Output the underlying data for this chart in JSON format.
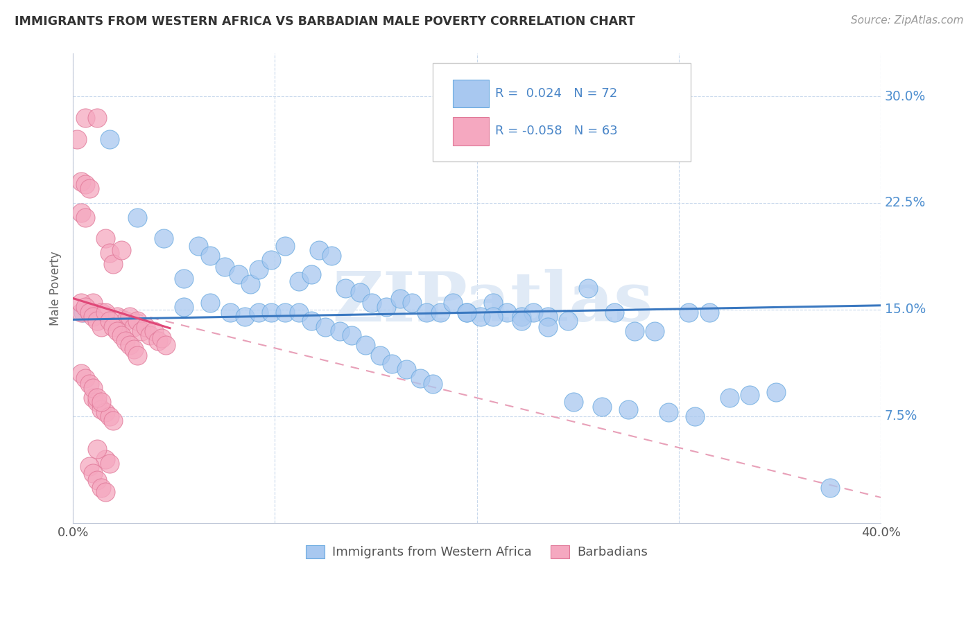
{
  "title": "IMMIGRANTS FROM WESTERN AFRICA VS BARBADIAN MALE POVERTY CORRELATION CHART",
  "source": "Source: ZipAtlas.com",
  "ylabel": "Male Poverty",
  "xlim": [
    0.0,
    0.4
  ],
  "ylim": [
    0.0,
    0.33
  ],
  "blue_color": "#a8c8f0",
  "blue_edge_color": "#6aaae0",
  "pink_color": "#f5a8c0",
  "pink_edge_color": "#e07898",
  "blue_line_color": "#3a78c0",
  "pink_line_color": "#e04878",
  "pink_dashed_color": "#e8a0b8",
  "watermark": "ZIPatlas",
  "blue_x": [
    0.005,
    0.018,
    0.032,
    0.045,
    0.055,
    0.062,
    0.068,
    0.075,
    0.082,
    0.088,
    0.092,
    0.098,
    0.105,
    0.112,
    0.118,
    0.122,
    0.128,
    0.135,
    0.142,
    0.148,
    0.155,
    0.162,
    0.168,
    0.175,
    0.182,
    0.188,
    0.195,
    0.202,
    0.208,
    0.215,
    0.222,
    0.228,
    0.235,
    0.245,
    0.255,
    0.268,
    0.278,
    0.288,
    0.305,
    0.315,
    0.325,
    0.335,
    0.348,
    0.055,
    0.068,
    0.078,
    0.085,
    0.092,
    0.098,
    0.105,
    0.112,
    0.118,
    0.125,
    0.132,
    0.138,
    0.145,
    0.152,
    0.158,
    0.165,
    0.172,
    0.178,
    0.195,
    0.208,
    0.222,
    0.235,
    0.248,
    0.262,
    0.275,
    0.295,
    0.308,
    0.375
  ],
  "blue_y": [
    0.148,
    0.27,
    0.215,
    0.2,
    0.172,
    0.195,
    0.188,
    0.18,
    0.175,
    0.168,
    0.178,
    0.185,
    0.195,
    0.17,
    0.175,
    0.192,
    0.188,
    0.165,
    0.162,
    0.155,
    0.152,
    0.158,
    0.155,
    0.148,
    0.148,
    0.155,
    0.148,
    0.145,
    0.155,
    0.148,
    0.145,
    0.148,
    0.145,
    0.142,
    0.165,
    0.148,
    0.135,
    0.135,
    0.148,
    0.148,
    0.088,
    0.09,
    0.092,
    0.152,
    0.155,
    0.148,
    0.145,
    0.148,
    0.148,
    0.148,
    0.148,
    0.142,
    0.138,
    0.135,
    0.132,
    0.125,
    0.118,
    0.112,
    0.108,
    0.102,
    0.098,
    0.148,
    0.145,
    0.142,
    0.138,
    0.085,
    0.082,
    0.08,
    0.078,
    0.075,
    0.025
  ],
  "pink_x": [
    0.002,
    0.004,
    0.006,
    0.008,
    0.01,
    0.012,
    0.014,
    0.016,
    0.018,
    0.02,
    0.022,
    0.024,
    0.026,
    0.028,
    0.03,
    0.032,
    0.034,
    0.036,
    0.038,
    0.04,
    0.042,
    0.044,
    0.046,
    0.004,
    0.006,
    0.008,
    0.01,
    0.012,
    0.014,
    0.016,
    0.018,
    0.02,
    0.022,
    0.024,
    0.026,
    0.028,
    0.03,
    0.032,
    0.004,
    0.006,
    0.008,
    0.01,
    0.012,
    0.014,
    0.016,
    0.018,
    0.02,
    0.004,
    0.006,
    0.008,
    0.01,
    0.012,
    0.014,
    0.016,
    0.018,
    0.004,
    0.006,
    0.008,
    0.01,
    0.012,
    0.014,
    0.016,
    0.012
  ],
  "pink_y": [
    0.27,
    0.148,
    0.285,
    0.148,
    0.155,
    0.285,
    0.148,
    0.2,
    0.19,
    0.182,
    0.145,
    0.192,
    0.142,
    0.145,
    0.138,
    0.142,
    0.135,
    0.138,
    0.132,
    0.135,
    0.128,
    0.13,
    0.125,
    0.155,
    0.152,
    0.148,
    0.145,
    0.142,
    0.138,
    0.148,
    0.142,
    0.138,
    0.135,
    0.132,
    0.128,
    0.125,
    0.122,
    0.118,
    0.24,
    0.238,
    0.235,
    0.088,
    0.085,
    0.08,
    0.078,
    0.075,
    0.072,
    0.105,
    0.102,
    0.098,
    0.095,
    0.088,
    0.085,
    0.045,
    0.042,
    0.218,
    0.215,
    0.04,
    0.035,
    0.03,
    0.025,
    0.022,
    0.052
  ]
}
